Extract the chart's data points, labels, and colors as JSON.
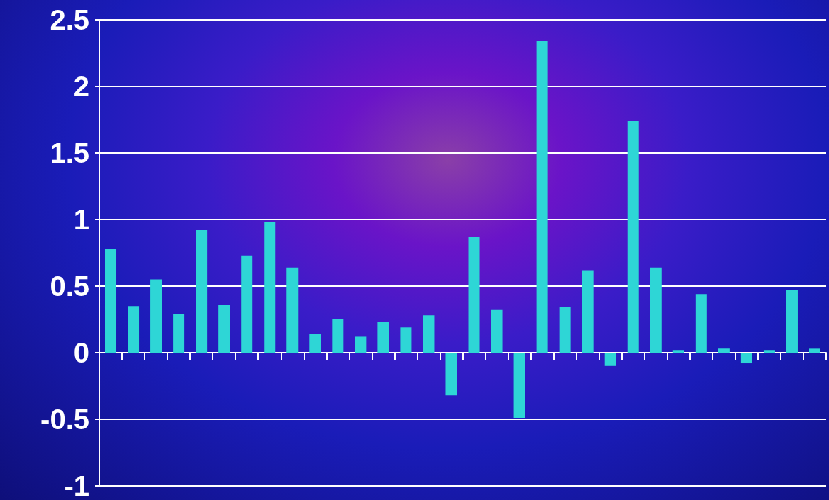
{
  "chart_data": {
    "type": "bar",
    "categories": [
      null,
      null,
      null,
      null,
      null,
      null,
      null,
      null,
      null,
      null,
      null,
      null,
      null,
      null,
      null,
      null,
      null,
      null,
      null,
      null,
      null,
      null,
      null,
      null,
      null,
      null,
      null,
      null,
      null,
      null,
      null,
      null
    ],
    "values": [
      0.78,
      0.35,
      0.55,
      0.29,
      0.92,
      0.36,
      0.73,
      0.98,
      0.64,
      0.14,
      0.25,
      0.12,
      0.23,
      0.19,
      0.28,
      -0.32,
      0.87,
      0.32,
      -0.49,
      2.34,
      0.34,
      0.62,
      -0.1,
      1.74,
      0.64,
      0.02,
      0.44,
      0.03,
      -0.08,
      0.02,
      0.47,
      0.03
    ],
    "color": "#2ed6d6",
    "ylim": [
      -1,
      2.5
    ],
    "yticks": [
      {
        "value": -1,
        "label": "-1"
      },
      {
        "value": -0.5,
        "label": "-0.5"
      },
      {
        "value": 0,
        "label": "0"
      },
      {
        "value": 0.5,
        "label": "0.5"
      },
      {
        "value": 1,
        "label": "1"
      },
      {
        "value": 1.5,
        "label": "1.5"
      },
      {
        "value": 2,
        "label": "2"
      },
      {
        "value": 2.5,
        "label": "2.5"
      }
    ],
    "grid": "y"
  }
}
